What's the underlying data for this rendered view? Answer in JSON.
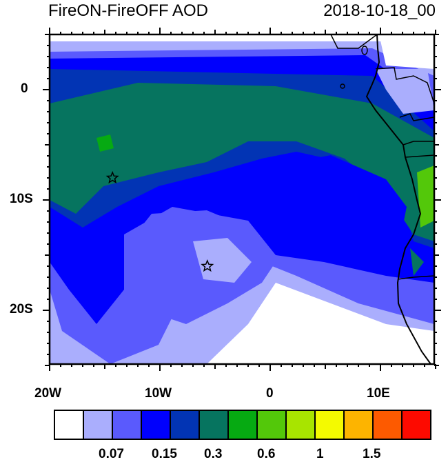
{
  "title_left": "FireON-FireOFF AOD",
  "title_right": "2018-10-18_00",
  "map": {
    "lon_range": [
      -20,
      15
    ],
    "lat_range": [
      -25,
      5
    ],
    "lon_labels": [
      "20W",
      "10W",
      "0",
      "10E"
    ],
    "lat_labels": [
      "0",
      "10S",
      "20S"
    ],
    "markers": [
      {
        "name": "star",
        "lon": -14.3,
        "lat": -8.0
      },
      {
        "name": "star",
        "lon": -5.7,
        "lat": -16.0
      }
    ]
  },
  "colorbar": {
    "colors": [
      "#ffffff",
      "#aaaefd",
      "#5a5afd",
      "#0000fd",
      "#0234b4",
      "#06745f",
      "#06aa12",
      "#53c80a",
      "#a8e400",
      "#f4fa00",
      "#fdb400",
      "#fd5a00",
      "#fd0a00"
    ],
    "labels": [
      "0.07",
      "0.15",
      "0.3",
      "0.6",
      "1",
      "1.5"
    ]
  }
}
